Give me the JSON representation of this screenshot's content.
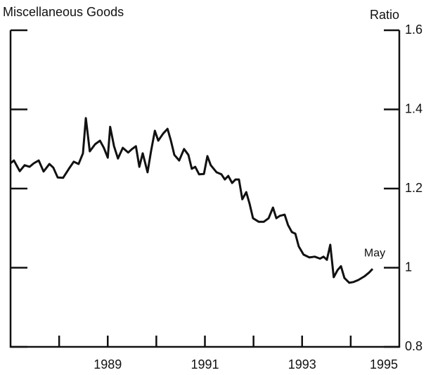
{
  "chart_data": {
    "type": "line",
    "title": "Miscellaneous Goods",
    "y_axis_label": "Ratio",
    "annotation": "May",
    "color": "#111111",
    "xlim": [
      1987,
      1995
    ],
    "xticks": [
      1989,
      1991,
      1993,
      1995
    ],
    "xminorticks": [
      1988,
      1990,
      1992,
      1994
    ],
    "ylim": [
      0.8,
      1.6
    ],
    "yticks": [
      0.8,
      1,
      1.2,
      1.4,
      1.6
    ],
    "y_axis_side": "right",
    "grid": false,
    "x": [
      1987.0,
      1987.07,
      1987.19,
      1987.29,
      1987.39,
      1987.48,
      1987.58,
      1987.68,
      1987.8,
      1987.88,
      1987.97,
      1988.08,
      1988.2,
      1988.3,
      1988.4,
      1988.49,
      1988.55,
      1988.63,
      1988.74,
      1988.84,
      1988.92,
      1989.0,
      1989.05,
      1989.13,
      1989.21,
      1989.31,
      1989.42,
      1989.5,
      1989.58,
      1989.65,
      1989.72,
      1989.82,
      1989.89,
      1989.97,
      1990.04,
      1990.14,
      1990.23,
      1990.3,
      1990.37,
      1990.47,
      1990.57,
      1990.66,
      1990.73,
      1990.8,
      1990.88,
      1990.98,
      1991.05,
      1991.12,
      1991.24,
      1991.34,
      1991.41,
      1991.48,
      1991.56,
      1991.63,
      1991.7,
      1991.77,
      1991.85,
      1991.92,
      1991.99,
      1992.11,
      1992.21,
      1992.31,
      1992.4,
      1992.47,
      1992.54,
      1992.64,
      1992.71,
      1992.79,
      1992.86,
      1992.93,
      1993.03,
      1993.15,
      1993.26,
      1993.37,
      1993.44,
      1993.51,
      1993.58,
      1993.65,
      1993.73,
      1993.8,
      1993.87,
      1993.97,
      1994.06,
      1994.16,
      1994.28,
      1994.38,
      1994.45
    ],
    "series": [
      {
        "name": "Ratio",
        "color": "#111111",
        "values": [
          1.264,
          1.271,
          1.244,
          1.259,
          1.255,
          1.264,
          1.271,
          1.243,
          1.262,
          1.253,
          1.228,
          1.227,
          1.25,
          1.268,
          1.262,
          1.289,
          1.378,
          1.294,
          1.312,
          1.321,
          1.303,
          1.278,
          1.356,
          1.307,
          1.276,
          1.303,
          1.291,
          1.3,
          1.307,
          1.255,
          1.289,
          1.241,
          1.294,
          1.346,
          1.321,
          1.339,
          1.351,
          1.321,
          1.285,
          1.271,
          1.3,
          1.285,
          1.25,
          1.255,
          1.236,
          1.237,
          1.282,
          1.259,
          1.241,
          1.236,
          1.223,
          1.232,
          1.214,
          1.223,
          1.223,
          1.173,
          1.191,
          1.161,
          1.125,
          1.116,
          1.116,
          1.125,
          1.152,
          1.125,
          1.131,
          1.134,
          1.108,
          1.09,
          1.086,
          1.054,
          1.033,
          1.026,
          1.028,
          1.023,
          1.028,
          1.02,
          1.058,
          0.976,
          0.994,
          1.004,
          0.974,
          0.962,
          0.964,
          0.969,
          0.978,
          0.988,
          0.997
        ]
      }
    ]
  }
}
